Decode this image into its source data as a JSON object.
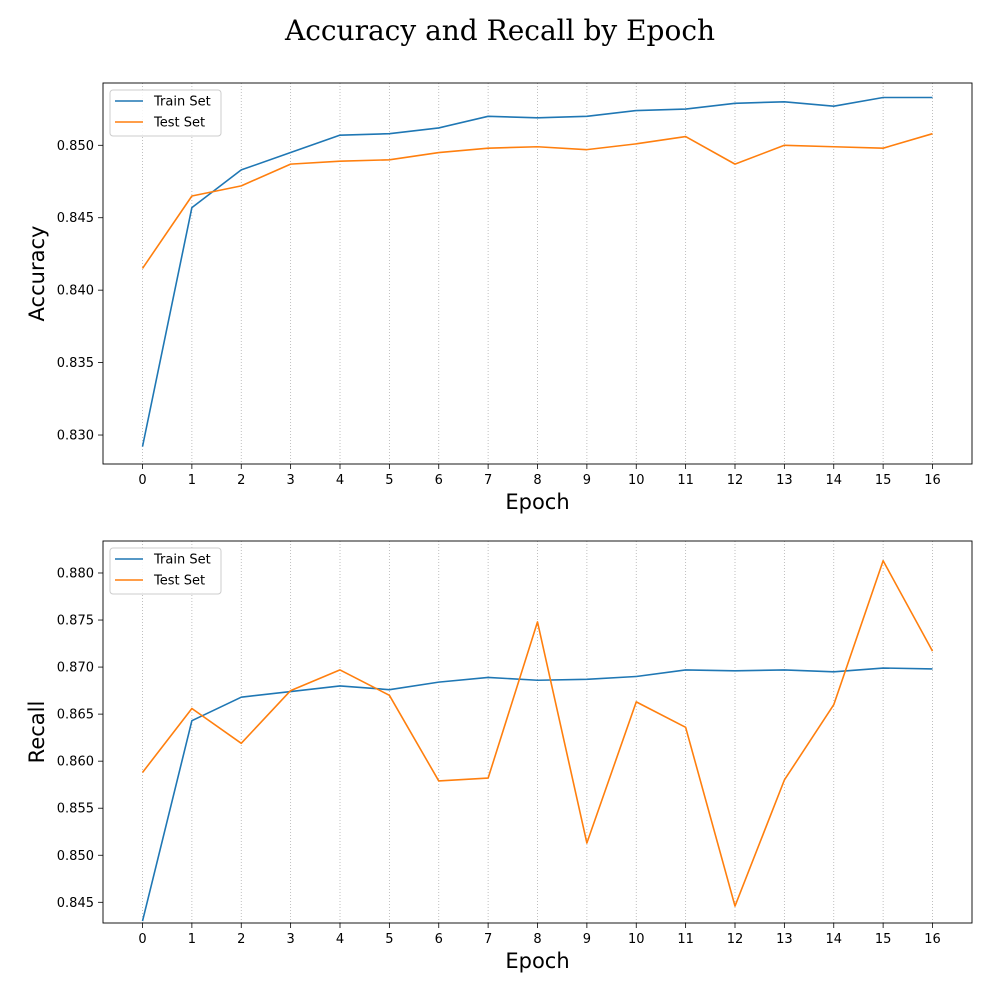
{
  "title": "Accuracy and Recall by Epoch",
  "colors": {
    "train": "#1f77b4",
    "test": "#ff7f0e",
    "grid": "#b0b0b0"
  },
  "chart_data": [
    {
      "type": "line",
      "ylabel": "Accuracy",
      "xlabel": "Epoch",
      "x": [
        0,
        1,
        2,
        3,
        4,
        5,
        6,
        7,
        8,
        9,
        10,
        11,
        12,
        13,
        14,
        15,
        16
      ],
      "xlim": [
        -0.8,
        16.8
      ],
      "ylim": [
        0.828,
        0.8543
      ],
      "yticks": [
        0.83,
        0.835,
        0.84,
        0.845,
        0.85
      ],
      "ytick_labels": [
        "0.830",
        "0.835",
        "0.840",
        "0.845",
        "0.850"
      ],
      "grid": "vertical dotted",
      "legend": "upper-left",
      "series": [
        {
          "name": "Train Set",
          "color": "#1f77b4",
          "values": [
            0.8292,
            0.8457,
            0.8483,
            0.8495,
            0.8507,
            0.8508,
            0.8512,
            0.852,
            0.8519,
            0.852,
            0.8524,
            0.8525,
            0.8529,
            0.853,
            0.8527,
            0.8533,
            0.8533
          ]
        },
        {
          "name": "Test Set",
          "color": "#ff7f0e",
          "values": [
            0.8415,
            0.8465,
            0.8472,
            0.8487,
            0.8489,
            0.849,
            0.8495,
            0.8498,
            0.8499,
            0.8497,
            0.8501,
            0.8506,
            0.8487,
            0.85,
            0.8499,
            0.8498,
            0.8508
          ]
        }
      ]
    },
    {
      "type": "line",
      "ylabel": "Recall",
      "xlabel": "Epoch",
      "x": [
        0,
        1,
        2,
        3,
        4,
        5,
        6,
        7,
        8,
        9,
        10,
        11,
        12,
        13,
        14,
        15,
        16
      ],
      "xlim": [
        -0.8,
        16.8
      ],
      "ylim": [
        0.8428,
        0.8834
      ],
      "yticks": [
        0.845,
        0.85,
        0.855,
        0.86,
        0.865,
        0.87,
        0.875,
        0.88
      ],
      "ytick_labels": [
        "0.845",
        "0.850",
        "0.855",
        "0.860",
        "0.865",
        "0.870",
        "0.875",
        "0.880"
      ],
      "grid": "vertical dotted",
      "legend": "upper-left",
      "series": [
        {
          "name": "Train Set",
          "color": "#1f77b4",
          "values": [
            0.843,
            0.8643,
            0.8668,
            0.8674,
            0.868,
            0.8676,
            0.8684,
            0.8689,
            0.8686,
            0.8687,
            0.869,
            0.8697,
            0.8696,
            0.8697,
            0.8695,
            0.8699,
            0.8698
          ]
        },
        {
          "name": "Test Set",
          "color": "#ff7f0e",
          "values": [
            0.8588,
            0.8656,
            0.8619,
            0.8675,
            0.8697,
            0.867,
            0.8579,
            0.8582,
            0.8748,
            0.8513,
            0.8663,
            0.8636,
            0.8446,
            0.858,
            0.866,
            0.8813,
            0.8717
          ]
        }
      ]
    }
  ]
}
